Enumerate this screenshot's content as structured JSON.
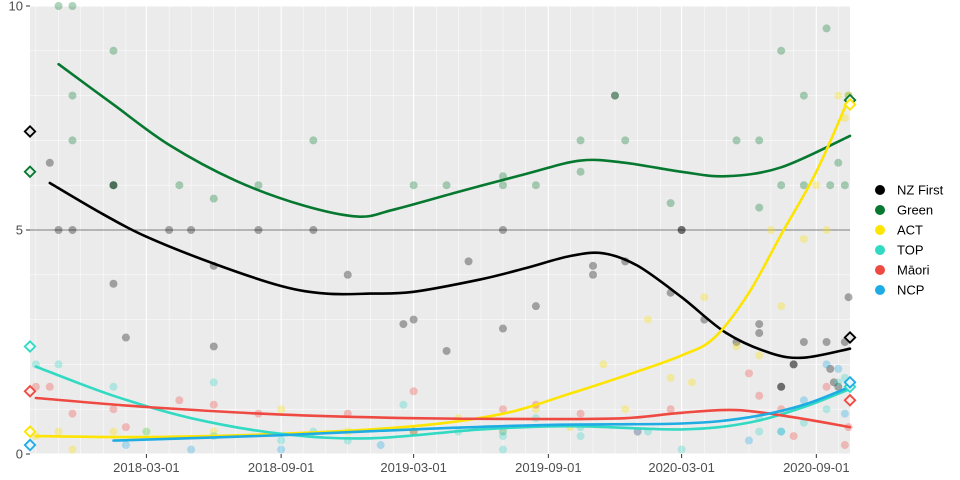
{
  "chart_data": {
    "type": "scatter",
    "title": "",
    "xlabel": "",
    "ylabel": "",
    "xlim": [
      "2017-09-23",
      "2020-10-17"
    ],
    "ylim": [
      0,
      10
    ],
    "y_ticks": [
      0,
      5,
      10
    ],
    "x_ticks": [
      "2018-03-01",
      "2018-09-01",
      "2019-03-01",
      "2019-09-01",
      "2020-03-01",
      "2020-09-01"
    ],
    "reference_line_y": 5,
    "grid": true,
    "legend_position": "right",
    "series": [
      {
        "name": "NZ First",
        "color": "#000000",
        "points": [
          [
            "2017-10-20",
            6.5
          ],
          [
            "2017-11-01",
            5.0
          ],
          [
            "2017-11-20",
            5.0
          ],
          [
            "2018-01-15",
            6.0
          ],
          [
            "2018-01-15",
            6.0
          ],
          [
            "2018-01-15",
            3.8
          ],
          [
            "2018-02-01",
            2.6
          ],
          [
            "2018-04-01",
            5.0
          ],
          [
            "2018-05-01",
            5.0
          ],
          [
            "2018-06-01",
            4.2
          ],
          [
            "2018-06-01",
            2.4
          ],
          [
            "2018-08-01",
            5.0
          ],
          [
            "2018-10-15",
            5.0
          ],
          [
            "2018-12-01",
            4.0
          ],
          [
            "2019-02-15",
            2.9
          ],
          [
            "2019-03-01",
            3.0
          ],
          [
            "2019-04-15",
            2.3
          ],
          [
            "2019-05-15",
            4.3
          ],
          [
            "2019-07-01",
            2.8
          ],
          [
            "2019-07-01",
            5.0
          ],
          [
            "2019-08-15",
            3.3
          ],
          [
            "2019-11-01",
            4.2
          ],
          [
            "2019-11-01",
            4.0
          ],
          [
            "2019-12-01",
            8.0
          ],
          [
            "2019-12-15",
            4.3
          ],
          [
            "2020-02-15",
            3.6
          ],
          [
            "2020-03-01",
            5.0
          ],
          [
            "2020-03-01",
            5.0
          ],
          [
            "2020-04-01",
            3.0
          ],
          [
            "2020-05-15",
            2.5
          ],
          [
            "2020-06-15",
            2.7
          ],
          [
            "2020-06-15",
            2.9
          ],
          [
            "2020-07-15",
            1.5
          ],
          [
            "2020-07-15",
            1.5
          ],
          [
            "2020-08-01",
            2.0
          ],
          [
            "2020-08-01",
            2.0
          ],
          [
            "2020-08-15",
            2.5
          ],
          [
            "2020-09-15",
            2.5
          ],
          [
            "2020-09-20",
            1.9
          ],
          [
            "2020-09-25",
            1.6
          ],
          [
            "2020-10-01",
            1.5
          ],
          [
            "2020-10-10",
            2.5
          ],
          [
            "2020-10-15",
            3.5
          ]
        ],
        "smooth": [
          [
            "2017-10-20",
            6.05
          ],
          [
            "2018-01-01",
            5.35
          ],
          [
            "2018-03-01",
            4.85
          ],
          [
            "2018-06-01",
            4.25
          ],
          [
            "2018-09-01",
            3.75
          ],
          [
            "2018-11-01",
            3.58
          ],
          [
            "2019-01-01",
            3.58
          ],
          [
            "2019-03-01",
            3.62
          ],
          [
            "2019-06-01",
            3.9
          ],
          [
            "2019-08-01",
            4.15
          ],
          [
            "2019-10-01",
            4.42
          ],
          [
            "2019-11-15",
            4.48
          ],
          [
            "2020-01-01",
            4.2
          ],
          [
            "2020-03-01",
            3.5
          ],
          [
            "2020-05-01",
            2.7
          ],
          [
            "2020-07-01",
            2.25
          ],
          [
            "2020-08-15",
            2.15
          ],
          [
            "2020-10-17",
            2.35
          ]
        ],
        "end_marker": 7.2,
        "end_marker_right": 2.6
      },
      {
        "name": "Green",
        "color": "#067830",
        "points": [
          [
            "2017-11-01",
            10.0
          ],
          [
            "2017-11-20",
            10.0
          ],
          [
            "2017-11-20",
            7.0
          ],
          [
            "2017-11-20",
            8.0
          ],
          [
            "2018-01-15",
            9.0
          ],
          [
            "2018-01-15",
            6.0
          ],
          [
            "2018-04-15",
            6.0
          ],
          [
            "2018-06-01",
            5.7
          ],
          [
            "2018-08-01",
            6.0
          ],
          [
            "2018-10-15",
            7.0
          ],
          [
            "2019-03-01",
            6.0
          ],
          [
            "2019-04-15",
            6.0
          ],
          [
            "2019-07-01",
            6.2
          ],
          [
            "2019-07-01",
            6.0
          ],
          [
            "2019-08-15",
            6.0
          ],
          [
            "2019-10-15",
            7.0
          ],
          [
            "2019-10-15",
            6.3
          ],
          [
            "2019-12-01",
            8.0
          ],
          [
            "2019-12-15",
            7.0
          ],
          [
            "2020-02-15",
            5.6
          ],
          [
            "2020-05-15",
            7.0
          ],
          [
            "2020-06-15",
            5.5
          ],
          [
            "2020-06-15",
            7.0
          ],
          [
            "2020-07-15",
            9.0
          ],
          [
            "2020-07-15",
            6.0
          ],
          [
            "2020-08-15",
            8.0
          ],
          [
            "2020-08-15",
            6.0
          ],
          [
            "2020-09-15",
            9.5
          ],
          [
            "2020-09-20",
            6.0
          ],
          [
            "2020-10-01",
            6.5
          ],
          [
            "2020-10-10",
            6.0
          ],
          [
            "2020-10-15",
            8.0
          ]
        ],
        "smooth": [
          [
            "2017-11-01",
            8.7
          ],
          [
            "2018-01-15",
            7.8
          ],
          [
            "2018-04-01",
            6.9
          ],
          [
            "2018-07-01",
            6.1
          ],
          [
            "2018-10-01",
            5.55
          ],
          [
            "2018-12-15",
            5.3
          ],
          [
            "2019-02-01",
            5.45
          ],
          [
            "2019-05-01",
            5.85
          ],
          [
            "2019-08-01",
            6.25
          ],
          [
            "2019-10-15",
            6.55
          ],
          [
            "2019-12-15",
            6.5
          ],
          [
            "2020-03-01",
            6.3
          ],
          [
            "2020-05-01",
            6.2
          ],
          [
            "2020-07-15",
            6.4
          ],
          [
            "2020-10-17",
            7.1
          ]
        ],
        "end_marker": 6.3,
        "end_marker_right": 7.9
      },
      {
        "name": "ACT",
        "color": "#FDE401",
        "points": [
          [
            "2017-10-01",
            0.4
          ],
          [
            "2017-11-01",
            0.5
          ],
          [
            "2017-11-20",
            0.1
          ],
          [
            "2018-01-15",
            0.5
          ],
          [
            "2018-03-01",
            0.5
          ],
          [
            "2018-06-01",
            0.5
          ],
          [
            "2018-09-01",
            1.0
          ],
          [
            "2018-12-01",
            0.5
          ],
          [
            "2019-03-01",
            0.5
          ],
          [
            "2019-05-01",
            0.8
          ],
          [
            "2019-07-01",
            0.5
          ],
          [
            "2019-08-15",
            1.0
          ],
          [
            "2019-10-01",
            0.6
          ],
          [
            "2019-11-15",
            2.0
          ],
          [
            "2019-12-15",
            1.0
          ],
          [
            "2020-01-15",
            3.0
          ],
          [
            "2020-02-15",
            1.7
          ],
          [
            "2020-03-15",
            1.6
          ],
          [
            "2020-04-01",
            3.5
          ],
          [
            "2020-05-15",
            2.4
          ],
          [
            "2020-06-15",
            2.2
          ],
          [
            "2020-07-01",
            5.0
          ],
          [
            "2020-07-15",
            3.3
          ],
          [
            "2020-08-15",
            4.8
          ],
          [
            "2020-09-01",
            6.0
          ],
          [
            "2020-09-15",
            5.0
          ],
          [
            "2020-10-01",
            8.0
          ],
          [
            "2020-10-10",
            7.5
          ],
          [
            "2020-10-15",
            8.0
          ]
        ],
        "smooth": [
          [
            "2017-10-01",
            0.4
          ],
          [
            "2018-03-01",
            0.38
          ],
          [
            "2018-09-01",
            0.45
          ],
          [
            "2019-03-01",
            0.62
          ],
          [
            "2019-07-01",
            0.9
          ],
          [
            "2019-10-01",
            1.35
          ],
          [
            "2019-12-15",
            1.75
          ],
          [
            "2020-03-01",
            2.2
          ],
          [
            "2020-04-15",
            2.6
          ],
          [
            "2020-06-01",
            3.6
          ],
          [
            "2020-07-15",
            4.9
          ],
          [
            "2020-09-01",
            6.3
          ],
          [
            "2020-10-17",
            8.0
          ]
        ],
        "end_marker": 0.5,
        "end_marker_right": 7.8
      },
      {
        "name": "TOP",
        "color": "#32DAC3",
        "points": [
          [
            "2017-10-01",
            2.0
          ],
          [
            "2017-11-01",
            2.0
          ],
          [
            "2018-01-15",
            1.5
          ],
          [
            "2018-03-01",
            0.5
          ],
          [
            "2018-06-01",
            1.6
          ],
          [
            "2018-06-01",
            0.4
          ],
          [
            "2018-09-01",
            0.3
          ],
          [
            "2018-10-15",
            0.5
          ],
          [
            "2018-12-01",
            0.3
          ],
          [
            "2019-02-15",
            1.1
          ],
          [
            "2019-03-01",
            0.5
          ],
          [
            "2019-05-01",
            0.5
          ],
          [
            "2019-07-01",
            0.4
          ],
          [
            "2019-07-01",
            0.1
          ],
          [
            "2019-08-15",
            0.8
          ],
          [
            "2019-10-15",
            0.4
          ],
          [
            "2019-10-15",
            0.6
          ],
          [
            "2020-01-15",
            0.5
          ],
          [
            "2020-03-01",
            0.1
          ],
          [
            "2020-06-15",
            0.8
          ],
          [
            "2020-06-15",
            0.5
          ],
          [
            "2020-07-15",
            0.5
          ],
          [
            "2020-08-15",
            0.7
          ],
          [
            "2020-09-15",
            1.0
          ],
          [
            "2020-10-01",
            1.6
          ],
          [
            "2020-10-10",
            1.7
          ],
          [
            "2020-10-15",
            1.5
          ]
        ],
        "smooth": [
          [
            "2017-10-01",
            1.95
          ],
          [
            "2018-01-15",
            1.3
          ],
          [
            "2018-05-01",
            0.8
          ],
          [
            "2018-09-01",
            0.45
          ],
          [
            "2019-01-01",
            0.35
          ],
          [
            "2019-06-01",
            0.55
          ],
          [
            "2019-10-01",
            0.62
          ],
          [
            "2020-03-01",
            0.55
          ],
          [
            "2020-06-01",
            0.7
          ],
          [
            "2020-08-15",
            1.05
          ],
          [
            "2020-10-17",
            1.45
          ]
        ],
        "end_marker": 2.4,
        "end_marker_right": 1.5
      },
      {
        "name": "Māori",
        "color": "#EF4A42",
        "points": [
          [
            "2017-10-01",
            1.5
          ],
          [
            "2017-10-20",
            1.5
          ],
          [
            "2017-11-20",
            0.9
          ],
          [
            "2018-01-15",
            1.0
          ],
          [
            "2018-02-01",
            0.6
          ],
          [
            "2018-04-15",
            1.2
          ],
          [
            "2018-06-01",
            1.1
          ],
          [
            "2018-08-01",
            0.9
          ],
          [
            "2018-12-01",
            0.9
          ],
          [
            "2019-03-01",
            1.4
          ],
          [
            "2019-03-01",
            0.5
          ],
          [
            "2019-07-01",
            1.0
          ],
          [
            "2019-08-15",
            1.1
          ],
          [
            "2019-10-15",
            0.9
          ],
          [
            "2020-01-01",
            0.5
          ],
          [
            "2020-02-15",
            1.0
          ],
          [
            "2020-06-01",
            1.8
          ],
          [
            "2020-06-15",
            1.3
          ],
          [
            "2020-07-15",
            1.0
          ],
          [
            "2020-08-01",
            0.4
          ],
          [
            "2020-09-15",
            1.5
          ],
          [
            "2020-10-10",
            0.2
          ],
          [
            "2020-10-15",
            0.6
          ]
        ],
        "smooth": [
          [
            "2017-10-01",
            1.25
          ],
          [
            "2018-03-01",
            1.05
          ],
          [
            "2018-09-01",
            0.88
          ],
          [
            "2019-03-01",
            0.8
          ],
          [
            "2019-09-01",
            0.78
          ],
          [
            "2019-12-15",
            0.8
          ],
          [
            "2020-03-01",
            0.92
          ],
          [
            "2020-05-15",
            0.98
          ],
          [
            "2020-08-01",
            0.82
          ],
          [
            "2020-10-17",
            0.6
          ]
        ],
        "end_marker": 1.4,
        "end_marker_right": 1.2
      },
      {
        "name": "NCP",
        "color": "#1FACE4",
        "points": [
          [
            "2018-02-01",
            0.2
          ],
          [
            "2018-05-01",
            0.1
          ],
          [
            "2018-09-01",
            0.1
          ],
          [
            "2019-01-15",
            0.2
          ],
          [
            "2019-07-01",
            0.5
          ],
          [
            "2020-01-01",
            0.5
          ],
          [
            "2020-06-01",
            0.3
          ],
          [
            "2020-07-15",
            0.5
          ],
          [
            "2020-08-15",
            1.2
          ],
          [
            "2020-09-15",
            2.0
          ],
          [
            "2020-10-01",
            1.9
          ],
          [
            "2020-10-10",
            0.9
          ],
          [
            "2020-10-15",
            1.5
          ]
        ],
        "smooth": [
          [
            "2018-01-15",
            0.3
          ],
          [
            "2018-09-01",
            0.42
          ],
          [
            "2019-03-01",
            0.55
          ],
          [
            "2019-09-01",
            0.65
          ],
          [
            "2020-03-01",
            0.68
          ],
          [
            "2020-06-01",
            0.82
          ],
          [
            "2020-08-15",
            1.1
          ],
          [
            "2020-10-17",
            1.5
          ]
        ],
        "end_marker": 0.2,
        "end_marker_right": 1.6
      }
    ]
  }
}
